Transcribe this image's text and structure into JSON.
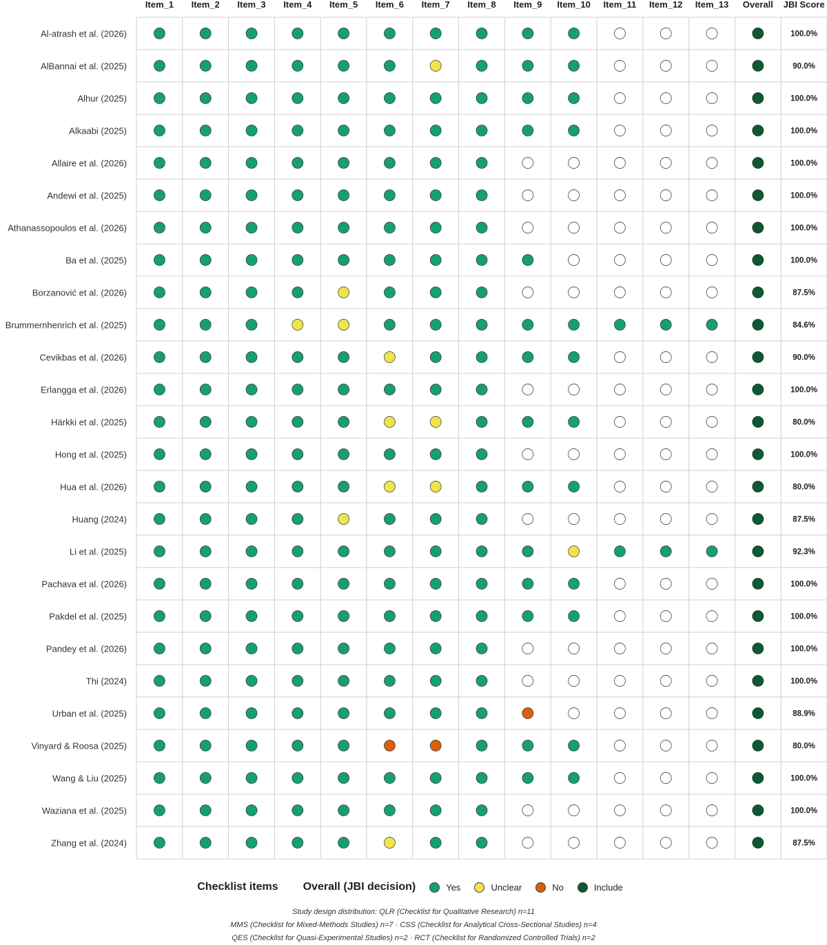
{
  "chart_data": {
    "type": "table",
    "columns": [
      "Item_1",
      "Item_2",
      "Item_3",
      "Item_4",
      "Item_5",
      "Item_6",
      "Item_7",
      "Item_8",
      "Item_9",
      "Item_10",
      "Item_11",
      "Item_12",
      "Item_13",
      "Overall",
      "JBI Score"
    ],
    "rows": [
      {
        "study": "Al-atrash et al. (2026)",
        "items": [
          "Y",
          "Y",
          "Y",
          "Y",
          "Y",
          "Y",
          "Y",
          "Y",
          "Y",
          "Y",
          "",
          "",
          ""
        ],
        "overall": "Include",
        "score": "100.0%"
      },
      {
        "study": "AlBannai et al. (2025)",
        "items": [
          "Y",
          "Y",
          "Y",
          "Y",
          "Y",
          "Y",
          "U",
          "Y",
          "Y",
          "Y",
          "",
          "",
          ""
        ],
        "overall": "Include",
        "score": "90.0%"
      },
      {
        "study": "Alhur (2025)",
        "items": [
          "Y",
          "Y",
          "Y",
          "Y",
          "Y",
          "Y",
          "Y",
          "Y",
          "Y",
          "Y",
          "",
          "",
          ""
        ],
        "overall": "Include",
        "score": "100.0%"
      },
      {
        "study": "Alkaabi (2025)",
        "items": [
          "Y",
          "Y",
          "Y",
          "Y",
          "Y",
          "Y",
          "Y",
          "Y",
          "Y",
          "Y",
          "",
          "",
          ""
        ],
        "overall": "Include",
        "score": "100.0%"
      },
      {
        "study": "Allaire et al. (2026)",
        "items": [
          "Y",
          "Y",
          "Y",
          "Y",
          "Y",
          "Y",
          "Y",
          "Y",
          "",
          "",
          "",
          "",
          ""
        ],
        "overall": "Include",
        "score": "100.0%"
      },
      {
        "study": "Andewi et al. (2025)",
        "items": [
          "Y",
          "Y",
          "Y",
          "Y",
          "Y",
          "Y",
          "Y",
          "Y",
          "",
          "",
          "",
          "",
          ""
        ],
        "overall": "Include",
        "score": "100.0%"
      },
      {
        "study": "Athanassopoulos et al. (2026)",
        "items": [
          "Y",
          "Y",
          "Y",
          "Y",
          "Y",
          "Y",
          "Y",
          "Y",
          "",
          "",
          "",
          "",
          ""
        ],
        "overall": "Include",
        "score": "100.0%"
      },
      {
        "study": "Ba et al. (2025)",
        "items": [
          "Y",
          "Y",
          "Y",
          "Y",
          "Y",
          "Y",
          "Y",
          "Y",
          "Y",
          "",
          "",
          "",
          ""
        ],
        "overall": "Include",
        "score": "100.0%"
      },
      {
        "study": "Borzanović et al. (2026)",
        "items": [
          "Y",
          "Y",
          "Y",
          "Y",
          "U",
          "Y",
          "Y",
          "Y",
          "",
          "",
          "",
          "",
          ""
        ],
        "overall": "Include",
        "score": "87.5%"
      },
      {
        "study": "Brummernhenrich et al. (2025)",
        "items": [
          "Y",
          "Y",
          "Y",
          "U",
          "U",
          "Y",
          "Y",
          "Y",
          "Y",
          "Y",
          "Y",
          "Y",
          "Y"
        ],
        "overall": "Include",
        "score": "84.6%"
      },
      {
        "study": "Cevikbas et al. (2026)",
        "items": [
          "Y",
          "Y",
          "Y",
          "Y",
          "Y",
          "U",
          "Y",
          "Y",
          "Y",
          "Y",
          "",
          "",
          ""
        ],
        "overall": "Include",
        "score": "90.0%"
      },
      {
        "study": "Erlangga et al. (2026)",
        "items": [
          "Y",
          "Y",
          "Y",
          "Y",
          "Y",
          "Y",
          "Y",
          "Y",
          "",
          "",
          "",
          "",
          ""
        ],
        "overall": "Include",
        "score": "100.0%"
      },
      {
        "study": "Härkki et al. (2025)",
        "items": [
          "Y",
          "Y",
          "Y",
          "Y",
          "Y",
          "U",
          "U",
          "Y",
          "Y",
          "Y",
          "",
          "",
          ""
        ],
        "overall": "Include",
        "score": "80.0%"
      },
      {
        "study": "Hong et al. (2025)",
        "items": [
          "Y",
          "Y",
          "Y",
          "Y",
          "Y",
          "Y",
          "Y",
          "Y",
          "",
          "",
          "",
          "",
          ""
        ],
        "overall": "Include",
        "score": "100.0%"
      },
      {
        "study": "Hua et al. (2026)",
        "items": [
          "Y",
          "Y",
          "Y",
          "Y",
          "Y",
          "U",
          "U",
          "Y",
          "Y",
          "Y",
          "",
          "",
          ""
        ],
        "overall": "Include",
        "score": "80.0%"
      },
      {
        "study": "Huang (2024)",
        "items": [
          "Y",
          "Y",
          "Y",
          "Y",
          "U",
          "Y",
          "Y",
          "Y",
          "",
          "",
          "",
          "",
          ""
        ],
        "overall": "Include",
        "score": "87.5%"
      },
      {
        "study": "Li et al. (2025)",
        "items": [
          "Y",
          "Y",
          "Y",
          "Y",
          "Y",
          "Y",
          "Y",
          "Y",
          "Y",
          "U",
          "Y",
          "Y",
          "Y"
        ],
        "overall": "Include",
        "score": "92.3%"
      },
      {
        "study": "Pachava et al. (2026)",
        "items": [
          "Y",
          "Y",
          "Y",
          "Y",
          "Y",
          "Y",
          "Y",
          "Y",
          "Y",
          "Y",
          "",
          "",
          ""
        ],
        "overall": "Include",
        "score": "100.0%"
      },
      {
        "study": "Pakdel et al. (2025)",
        "items": [
          "Y",
          "Y",
          "Y",
          "Y",
          "Y",
          "Y",
          "Y",
          "Y",
          "Y",
          "Y",
          "",
          "",
          ""
        ],
        "overall": "Include",
        "score": "100.0%"
      },
      {
        "study": "Pandey et al. (2026)",
        "items": [
          "Y",
          "Y",
          "Y",
          "Y",
          "Y",
          "Y",
          "Y",
          "Y",
          "",
          "",
          "",
          "",
          ""
        ],
        "overall": "Include",
        "score": "100.0%"
      },
      {
        "study": "Thi (2024)",
        "items": [
          "Y",
          "Y",
          "Y",
          "Y",
          "Y",
          "Y",
          "Y",
          "Y",
          "",
          "",
          "",
          "",
          ""
        ],
        "overall": "Include",
        "score": "100.0%"
      },
      {
        "study": "Urban et al. (2025)",
        "items": [
          "Y",
          "Y",
          "Y",
          "Y",
          "Y",
          "Y",
          "Y",
          "Y",
          "N",
          "",
          "",
          "",
          ""
        ],
        "overall": "Include",
        "score": "88.9%"
      },
      {
        "study": "Vinyard & Roosa (2025)",
        "items": [
          "Y",
          "Y",
          "Y",
          "Y",
          "Y",
          "N",
          "N",
          "Y",
          "Y",
          "Y",
          "",
          "",
          ""
        ],
        "overall": "Include",
        "score": "80.0%"
      },
      {
        "study": "Wang & Liu (2025)",
        "items": [
          "Y",
          "Y",
          "Y",
          "Y",
          "Y",
          "Y",
          "Y",
          "Y",
          "Y",
          "Y",
          "",
          "",
          ""
        ],
        "overall": "Include",
        "score": "100.0%"
      },
      {
        "study": "Waziana et al. (2025)",
        "items": [
          "Y",
          "Y",
          "Y",
          "Y",
          "Y",
          "Y",
          "Y",
          "Y",
          "",
          "",
          "",
          "",
          ""
        ],
        "overall": "Include",
        "score": "100.0%"
      },
      {
        "study": "Zhang et al. (2024)",
        "items": [
          "Y",
          "Y",
          "Y",
          "Y",
          "Y",
          "U",
          "Y",
          "Y",
          "",
          "",
          "",
          "",
          ""
        ],
        "overall": "Include",
        "score": "87.5%"
      }
    ],
    "legend": {
      "titles": [
        "Checklist items",
        "Overall (JBI decision)"
      ],
      "entries": [
        {
          "code": "Y",
          "label": "Yes"
        },
        {
          "code": "U",
          "label": "Unclear"
        },
        {
          "code": "N",
          "label": "No"
        },
        {
          "code": "Include",
          "label": "Include"
        }
      ]
    },
    "colors": {
      "Y": "#16a070",
      "U": "#f0e44c",
      "N": "#d8600e",
      "Include": "#0b5a34",
      "empty": "#ffffff",
      "grid": "#cfcfcf"
    },
    "grid": true
  },
  "footnotes": {
    "line1": "Study design distribution:  QLR (Checklist for Qualitative Research) n=11",
    "line2": "MMS (Checklist for Mixed-Methods Studies) n=7  ·  CSS (Checklist for Analytical Cross-Sectional Studies) n=4",
    "line3": "QES (Checklist for Quasi-Experimental Studies) n=2  ·  RCT (Checklist for Randomized Controlled Trials) n=2"
  }
}
